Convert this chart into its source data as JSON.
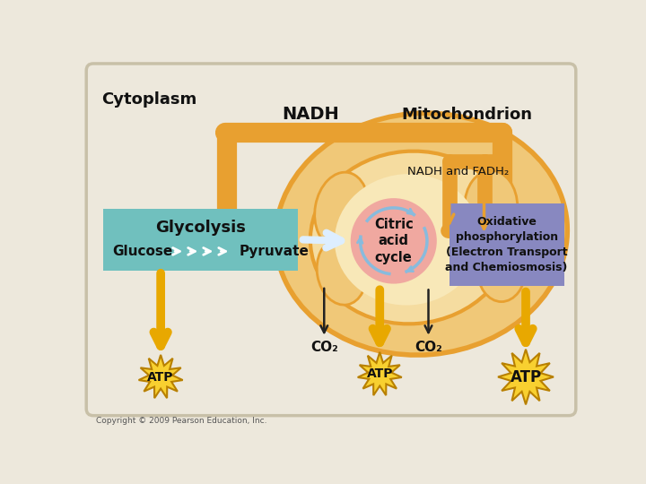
{
  "bg_color": "#EDE8DC",
  "border_color": "#C8C0A8",
  "orange": "#E8A030",
  "orange_light": "#F0C060",
  "mito_outer_fill": "#F0C878",
  "mito_inner_fill": "#F5DCA0",
  "mito_matrix_fill": "#F8E8B8",
  "teal_box": "#70C0BE",
  "purple_box": "#8888C0",
  "pink_circle": "#F0A8A0",
  "yellow_burst": "#F8D030",
  "yellow_arrow": "#E8A800",
  "blue_arc": "#88BBDD",
  "white_arrow": "#DDEEFF",
  "text_dark": "#111111",
  "copyright": "Copyright © 2009 Pearson Education, Inc.",
  "title": "Cytoplasm",
  "nadh_label": "NADH",
  "mito_label": "Mitochondrion",
  "nadh_fadh_label": "NADH and FADH₂",
  "glycolysis_label": "Glycolysis",
  "glucose_label": "Glucose",
  "pyruvate_label": "Pyruvate",
  "citric_label": "Citric\nacid\ncycle",
  "oxidative_label": "Oxidative\nphosphorylation\n(Electron Transport\nand Chemiosmosis)",
  "co2": "CO₂",
  "atp": "ATP"
}
